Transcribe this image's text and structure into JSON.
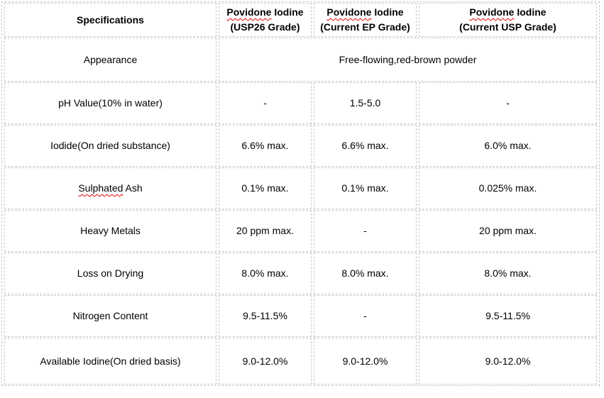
{
  "colors": {
    "border": "#c9c9c9",
    "text": "#000000",
    "squiggle": "#e00000",
    "background": "#ffffff"
  },
  "table": {
    "header": {
      "specifications_label": "Specifications",
      "columns": [
        {
          "product_flagged": "Povidone",
          "product_rest": " Iodine",
          "grade": "(USP26 Grade)"
        },
        {
          "product_flagged": "Povidone",
          "product_rest": " Iodine",
          "grade": "(Current EP Grade)"
        },
        {
          "product_flagged": "Povidone",
          "product_rest": " Iodine",
          "grade": "(Current USP Grade)"
        }
      ]
    },
    "rows": [
      {
        "spec": "Appearance",
        "merged_value": "Free-flowing,red-brown powder"
      },
      {
        "spec": "pH Value(10% in water)",
        "values": [
          "-",
          "1.5-5.0",
          "-"
        ]
      },
      {
        "spec": "Iodide(On dried substance)",
        "values": [
          "6.6% max.",
          "6.6% max.",
          "6.0% max."
        ]
      },
      {
        "spec_flagged": "Sulphated",
        "spec_rest": " Ash",
        "values": [
          "0.1% max.",
          "0.1% max.",
          "0.025% max."
        ]
      },
      {
        "spec": "Heavy Metals",
        "values": [
          "20 ppm max.",
          "-",
          "20 ppm max."
        ]
      },
      {
        "spec": "Loss on Drying",
        "values": [
          "8.0% max.",
          "8.0% max.",
          "8.0% max."
        ]
      },
      {
        "spec": "Nitrogen Content",
        "values": [
          "9.5-11.5%",
          "-",
          "9.5-11.5%"
        ]
      },
      {
        "spec": "Available Iodine(On dried basis)",
        "values": [
          "9.0-12.0%",
          "9.0-12.0%",
          "9.0-12.0%"
        ]
      }
    ]
  }
}
